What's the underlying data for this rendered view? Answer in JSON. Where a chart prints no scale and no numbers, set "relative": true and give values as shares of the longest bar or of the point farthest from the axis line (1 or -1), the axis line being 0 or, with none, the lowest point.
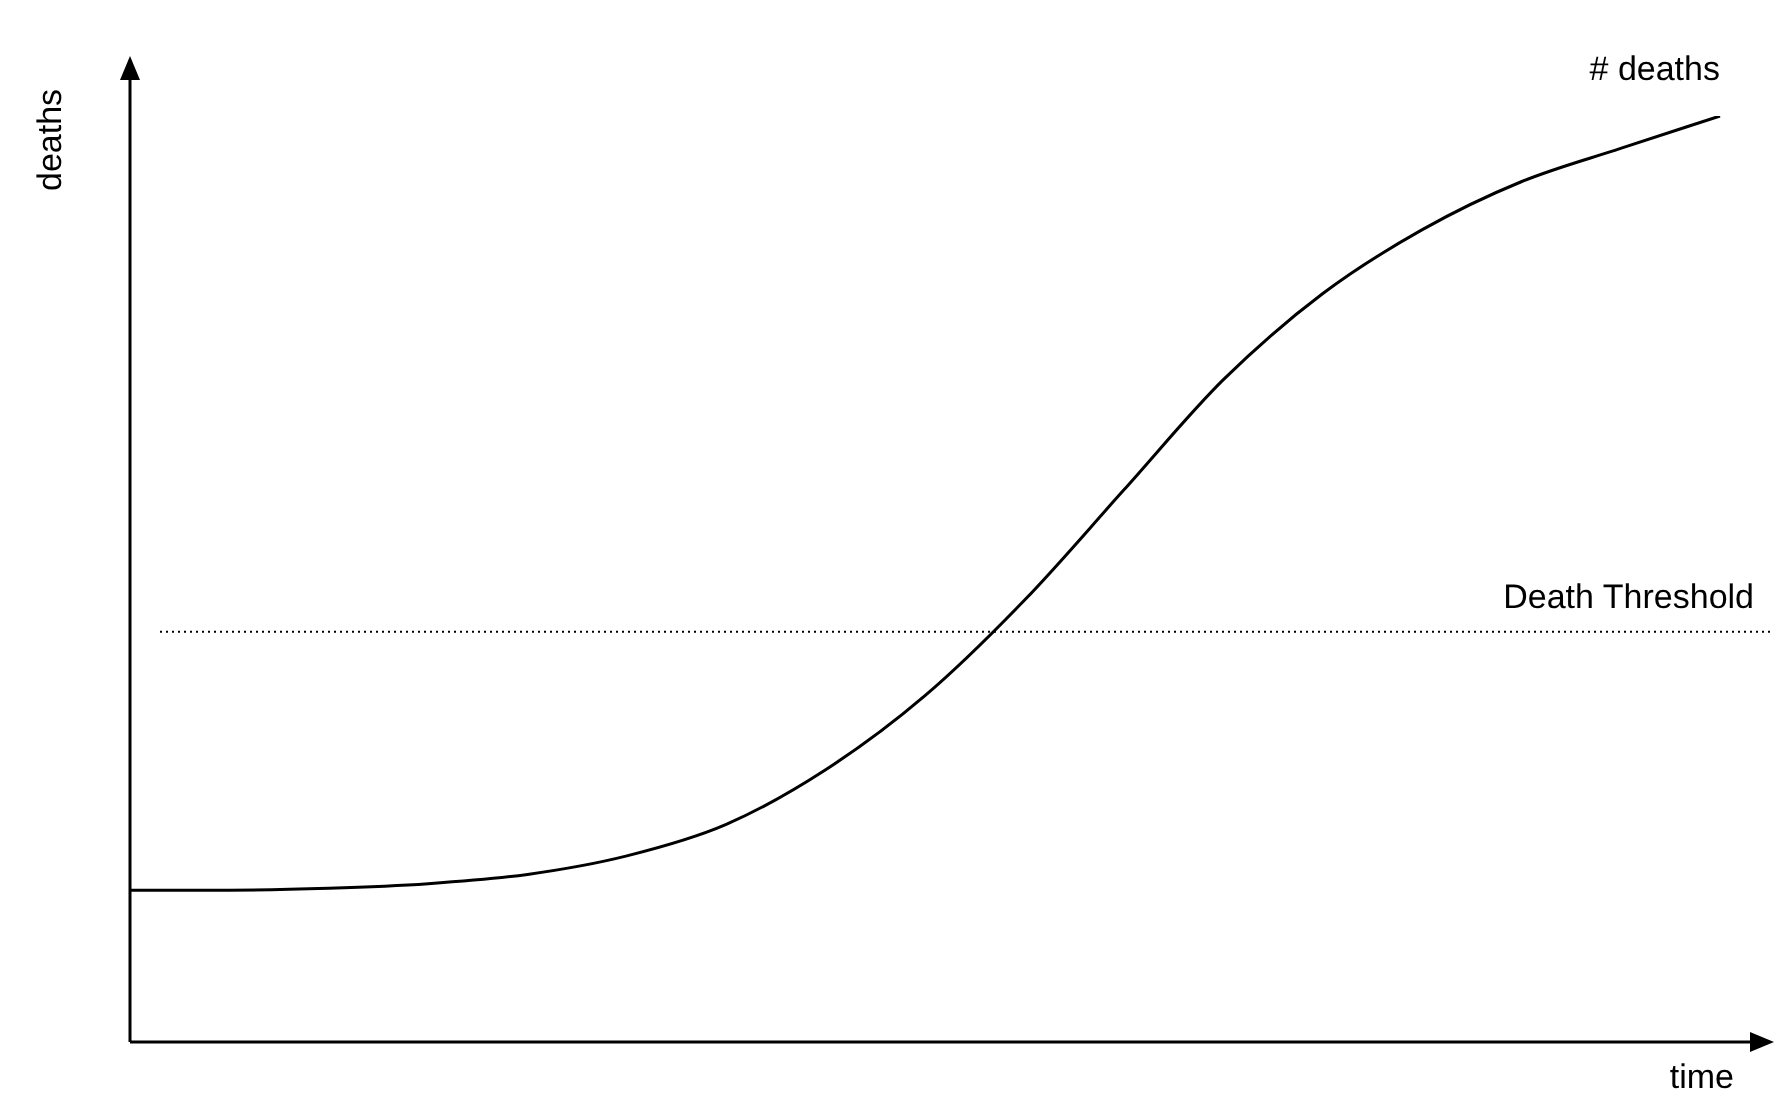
{
  "chart_data": {
    "type": "line",
    "relative": true,
    "xlabel": "time",
    "ylabel": "deaths",
    "categories": [
      null,
      null,
      null,
      null,
      null,
      null,
      null,
      null,
      null,
      null,
      null,
      null,
      null,
      null,
      null,
      null,
      null
    ],
    "series": [
      {
        "name": "# deaths",
        "color": "#000000",
        "values": [
          0.164,
          0.164,
          0.166,
          0.171,
          0.181,
          0.201,
          0.235,
          0.294,
          0.374,
          0.477,
          0.596,
          0.715,
          0.808,
          0.877,
          0.929,
          0.965,
          1.0
        ]
      }
    ],
    "ref_lines": [
      {
        "axis": "y",
        "value": 0.443,
        "label": "Death Threshold",
        "color": "#000000",
        "line_style": "dotted"
      }
    ],
    "marker": "none",
    "line_style": "solid",
    "grid": false,
    "legend": false
  }
}
